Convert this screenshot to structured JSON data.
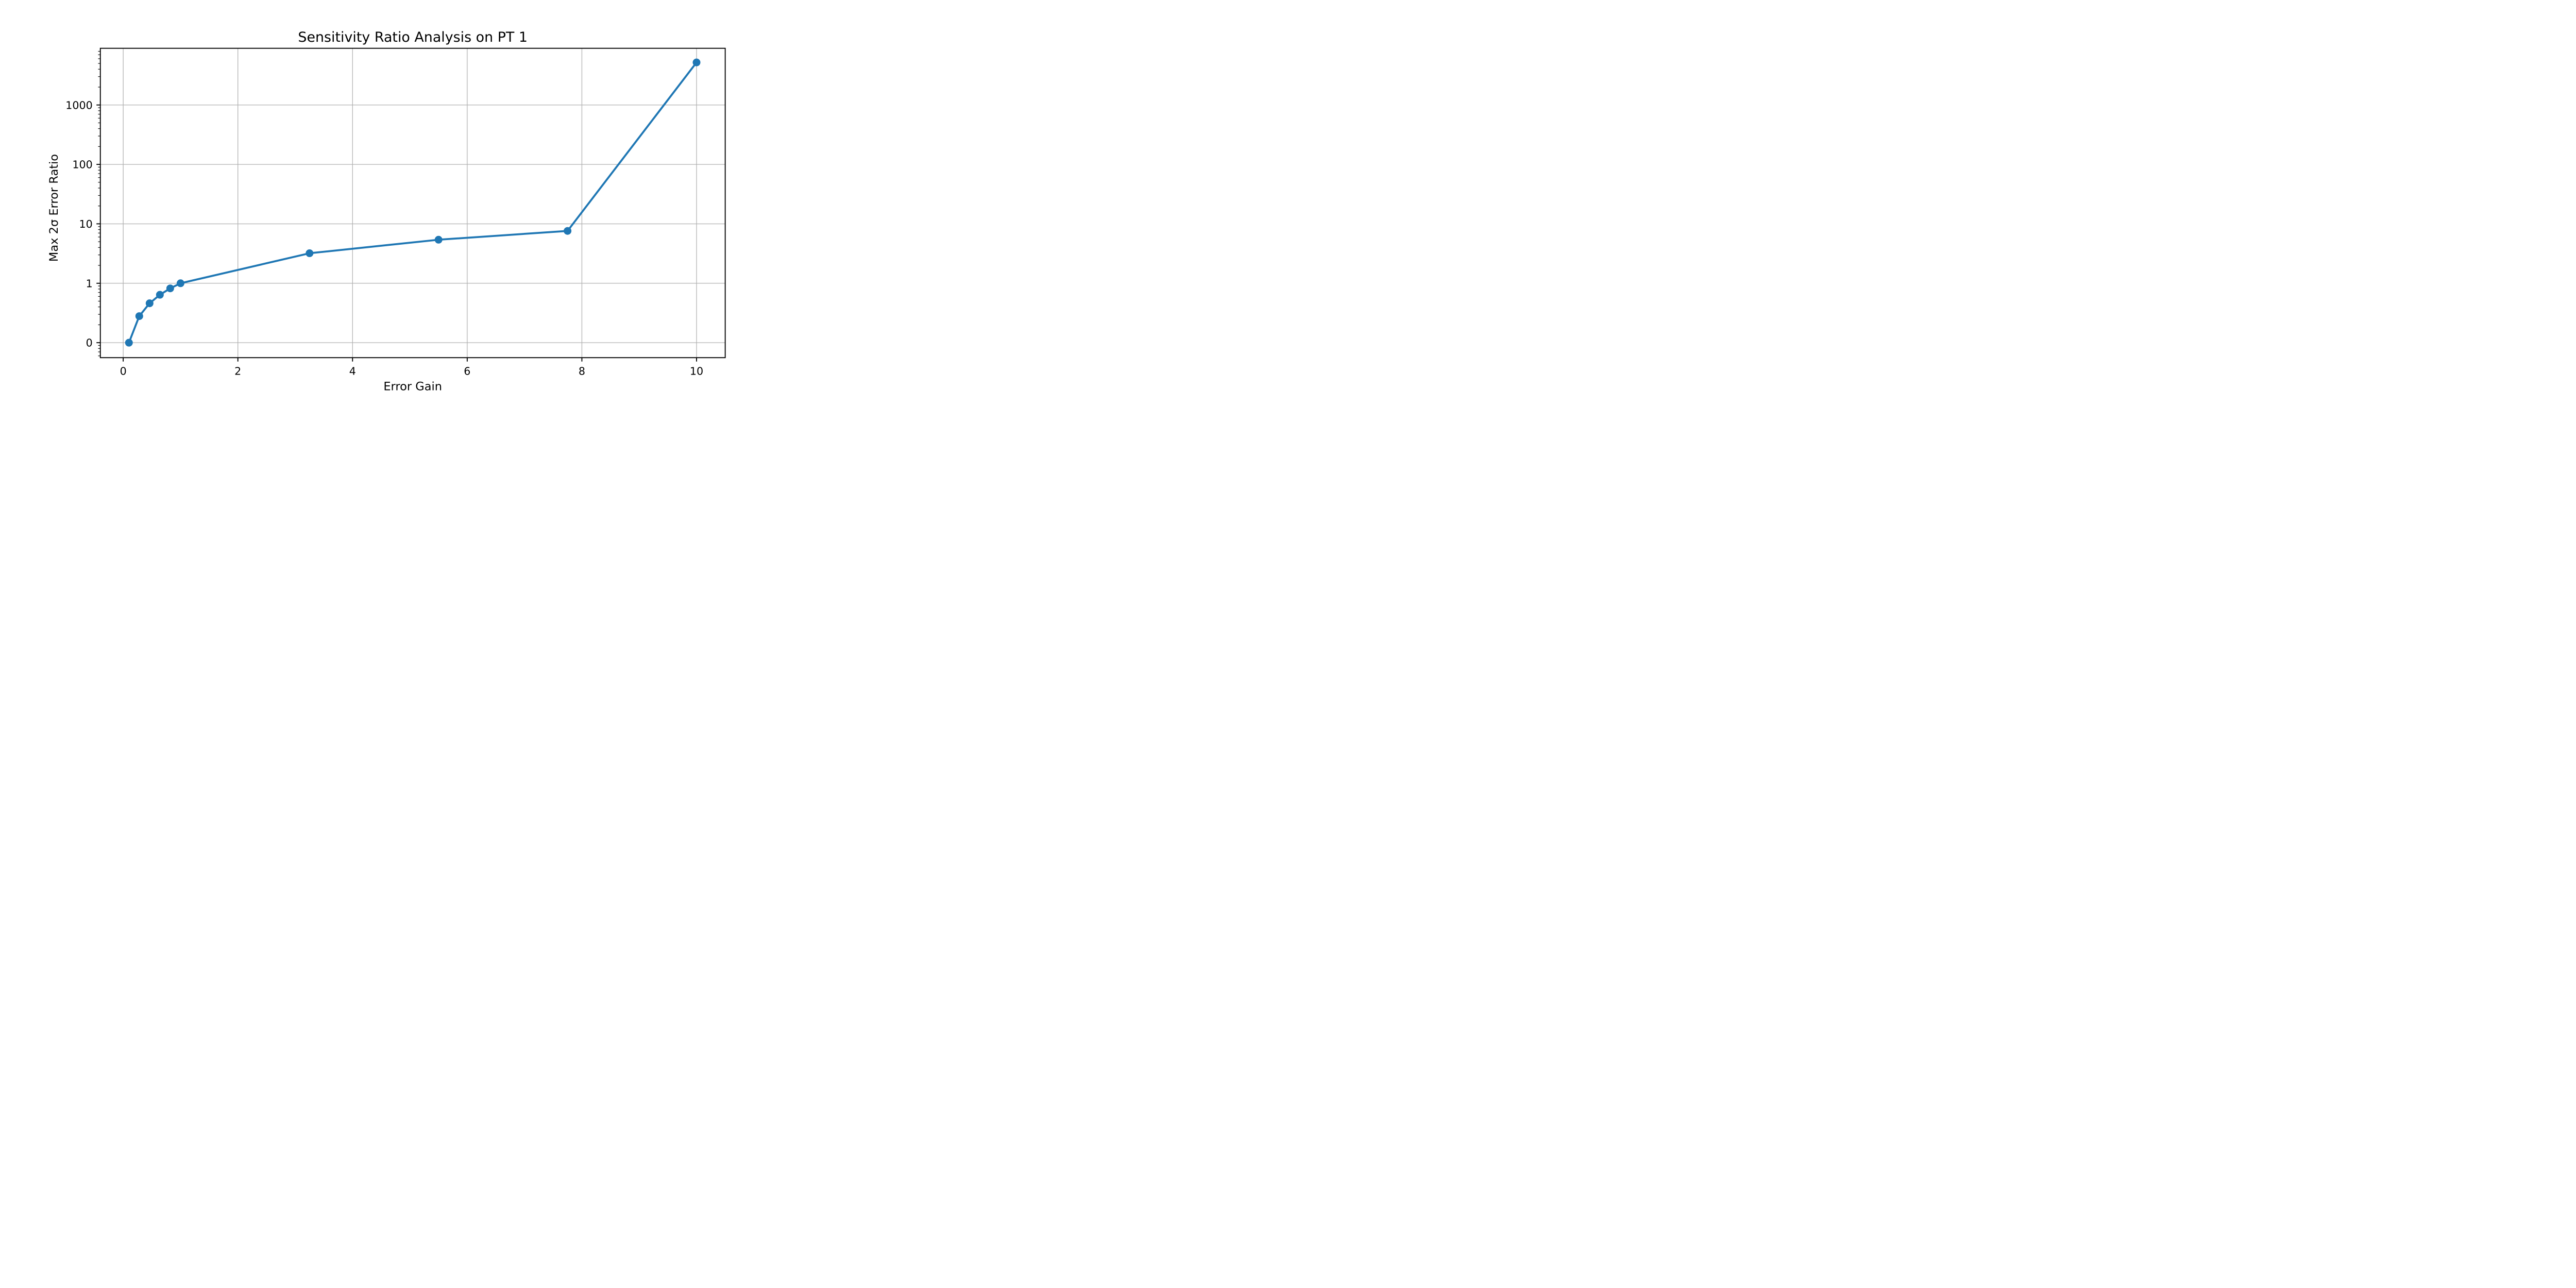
{
  "chart_data": {
    "type": "line",
    "title": "Sensitivity Ratio Analysis on PT 1",
    "xlabel": "Error Gain",
    "ylabel": "Max 2σ Error Ratio",
    "grid": true,
    "legend": "none",
    "background_color": "#ffffff",
    "grid_color": "#b0b0b0",
    "spine_color": "#000000",
    "series": [
      {
        "name": "max-2sigma-error-ratio",
        "color": "#1f77b4",
        "marker": "circle",
        "x": [
          0.1,
          0.28,
          0.46,
          0.64,
          0.82,
          1.0,
          3.25,
          5.5,
          7.75,
          10.0
        ],
        "y": [
          0.1,
          0.28,
          0.46,
          0.64,
          0.82,
          1.0,
          3.2,
          5.4,
          7.6,
          5200
        ]
      }
    ],
    "x_axis": {
      "scale": "linear",
      "lim": [
        -0.4,
        10.5
      ],
      "ticks": [
        0,
        2,
        4,
        6,
        8,
        10
      ],
      "tick_labels": [
        "0",
        "2",
        "4",
        "6",
        "8",
        "10"
      ]
    },
    "y_axis": {
      "scale": "log",
      "lim": [
        0.056,
        9000
      ],
      "major_ticks": [
        0.1,
        1,
        10,
        100,
        1000
      ],
      "tick_labels": [
        "0",
        "1",
        "10",
        "100",
        "1000"
      ],
      "minor_tick_subs": [
        2,
        3,
        4,
        5,
        6,
        7,
        8,
        9
      ]
    }
  }
}
